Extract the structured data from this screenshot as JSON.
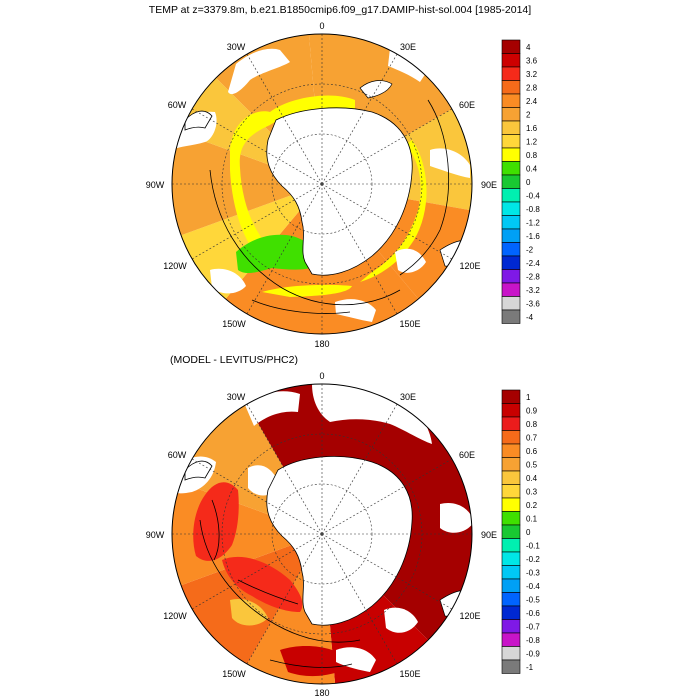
{
  "figure": {
    "title": "TEMP at z=3379.8m, b.e21.B1850cmip6.f09_g17.DAMIP-hist-sol.004 [1985-2014]",
    "diff_title": "(MODEL - LEVITUS/PHC2)"
  },
  "longitude_labels": {
    "l0": "0",
    "l30e": "30E",
    "l60e": "60E",
    "l90e": "90E",
    "l120e": "120E",
    "l150e": "150E",
    "l180": "180",
    "l150w": "150W",
    "l120w": "120W",
    "l90w": "90W",
    "l60w": "60W",
    "l30w": "30W"
  },
  "colors": {
    "land": "#ffffff",
    "coast": "#000000",
    "missing": "#ffffff"
  },
  "panels": [
    {
      "id": "model",
      "colorbar": {
        "labels": [
          "4",
          "3.6",
          "3.2",
          "2.8",
          "2.4",
          "2",
          "1.6",
          "1.2",
          "0.8",
          "0.4",
          "0",
          "-0.4",
          "-0.8",
          "-1.2",
          "-1.6",
          "-2",
          "-2.4",
          "-2.8",
          "-3.2",
          "-3.6",
          "-4"
        ],
        "colors": [
          "#a50000",
          "#cd0000",
          "#f52a1a",
          "#f56b1a",
          "#fa8c24",
          "#f7a233",
          "#fac63c",
          "#ffd73a",
          "#ffff00",
          "#40e000",
          "#19c832",
          "#00f0b0",
          "#00e6e6",
          "#00c8f5",
          "#00a0f5",
          "#0064ff",
          "#0028d2",
          "#7f19e6",
          "#c814c8",
          "#d7d7d7",
          "#7a7a7a"
        ],
        "sector_fields": [
          {
            "from": 315,
            "to": 355,
            "value": 2.0
          },
          {
            "from": 355,
            "to": 60,
            "value": 2.0
          },
          {
            "from": 60,
            "to": 100,
            "value": 1.5
          },
          {
            "from": 100,
            "to": 140,
            "value": 2.5
          },
          {
            "from": 140,
            "to": 220,
            "value": 2.5
          },
          {
            "from": 220,
            "to": 250,
            "value": 1.2
          },
          {
            "from": 250,
            "to": 290,
            "value": 2.0
          },
          {
            "from": 290,
            "to": 315,
            "value": 1.6
          }
        ]
      }
    },
    {
      "id": "diff",
      "colorbar": {
        "labels": [
          "1",
          "0.9",
          "0.8",
          "0.7",
          "0.6",
          "0.5",
          "0.4",
          "0.3",
          "0.2",
          "0.1",
          "0",
          "-0.1",
          "-0.2",
          "-0.3",
          "-0.4",
          "-0.5",
          "-0.6",
          "-0.7",
          "-0.8",
          "-0.9",
          "-1"
        ],
        "colors": [
          "#a50000",
          "#c80000",
          "#ec1c1c",
          "#f56b1a",
          "#fa8c24",
          "#f7a233",
          "#fac63c",
          "#ffd73a",
          "#ffff00",
          "#40e000",
          "#19c832",
          "#00f0b0",
          "#00e6e6",
          "#00c8f5",
          "#00a0f5",
          "#0064ff",
          "#0028d2",
          "#7f19e6",
          "#c814c8",
          "#d7d7d7",
          "#7a7a7a"
        ],
        "sector_fields": [
          {
            "from": 330,
            "to": 360,
            "value": 1.0
          },
          {
            "from": 0,
            "to": 135,
            "value": 1.0
          },
          {
            "from": 135,
            "to": 175,
            "value": 0.9
          },
          {
            "from": 175,
            "to": 210,
            "value": 0.6
          },
          {
            "from": 210,
            "to": 250,
            "value": 0.7
          },
          {
            "from": 250,
            "to": 290,
            "value": 0.6
          },
          {
            "from": 290,
            "to": 330,
            "value": 0.5
          }
        ]
      }
    }
  ]
}
